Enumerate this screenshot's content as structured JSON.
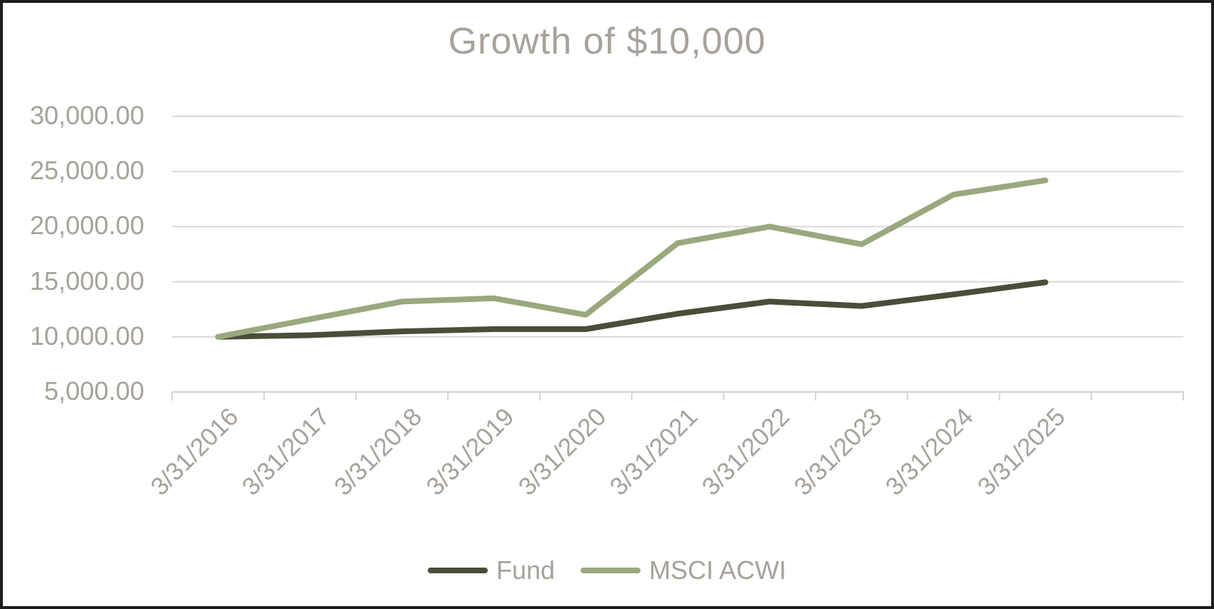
{
  "title": "Growth of $10,000",
  "chart_data": {
    "type": "line",
    "title": "Growth of $10,000",
    "categories": [
      "3/31/2016",
      "3/31/2017",
      "3/31/2018",
      "3/31/2019",
      "3/31/2020",
      "3/31/2021",
      "3/31/2022",
      "3/31/2023",
      "3/31/2024",
      "3/31/2025"
    ],
    "series": [
      {
        "name": "Fund",
        "color": "#4a4d38",
        "values": [
          10000,
          10150,
          10500,
          10700,
          10700,
          12100,
          13200,
          12800,
          13850,
          14950
        ]
      },
      {
        "name": "MSCI ACWI",
        "color": "#9aa87e",
        "values": [
          10000,
          11600,
          13200,
          13500,
          12000,
          18500,
          20000,
          18400,
          22900,
          24200
        ]
      }
    ],
    "y_axis": {
      "min": 5000,
      "max": 30000,
      "step": 5000,
      "tick_labels": [
        "30,000.00",
        "25,000.00",
        "20,000.00",
        "15,000.00",
        "10,000.00",
        "5,000.00"
      ]
    },
    "xlabel": "",
    "ylabel": "",
    "grid": "horizontal",
    "legend_position": "bottom"
  },
  "colors": {
    "text": "#a7a29a",
    "gridline": "#d9d9d9",
    "axis_line": "#d6d4d1",
    "border": "#1d1d1b",
    "background": "#ffffff"
  }
}
